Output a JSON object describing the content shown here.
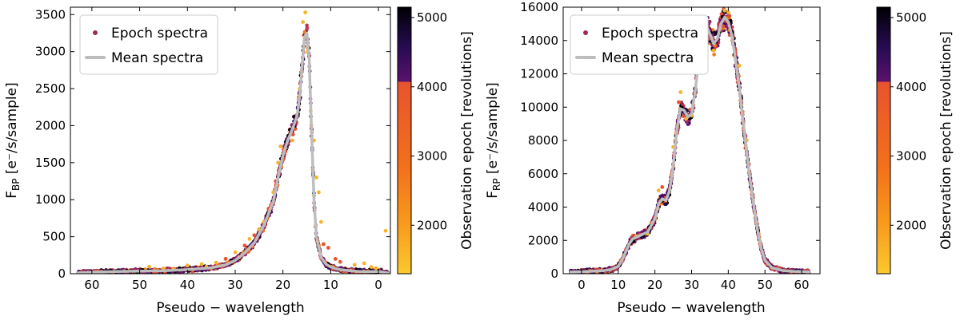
{
  "chart_data": [
    {
      "type": "scatter",
      "name": "bp",
      "xlabel": "Pseudo − wavelength",
      "ylabel_main": "F",
      "ylabel_sub": "BP",
      "ylabel_unit": "[e⁻/s/sample]",
      "x_range": [
        64.5,
        -2.5
      ],
      "y_range": [
        0,
        3600
      ],
      "x_ticks": [
        60,
        50,
        40,
        30,
        20,
        10,
        0
      ],
      "y_ticks": [
        0,
        500,
        1000,
        1500,
        2000,
        2500,
        3000,
        3500
      ],
      "legend": [
        "Epoch spectra",
        "Mean spectra"
      ],
      "legend_position": "top-left",
      "mean_spectrum": {
        "x": [
          63,
          60,
          55,
          50,
          45,
          40,
          35,
          32,
          30,
          28,
          26,
          24,
          22,
          21,
          20,
          19,
          18,
          17,
          16.5,
          16,
          15.5,
          15,
          14.5,
          14,
          13.5,
          13,
          12,
          11,
          10,
          9,
          8,
          6,
          4,
          2,
          0,
          -1,
          -2
        ],
        "y": [
          12,
          20,
          30,
          35,
          40,
          55,
          80,
          120,
          180,
          280,
          420,
          650,
          980,
          1300,
          1600,
          1800,
          1950,
          2150,
          2400,
          2800,
          3200,
          3250,
          2900,
          1900,
          1000,
          500,
          220,
          130,
          90,
          70,
          55,
          40,
          30,
          28,
          30,
          20,
          10
        ]
      },
      "outliers": [
        [
          48,
          95
        ],
        [
          45,
          70
        ],
        [
          43,
          55
        ],
        [
          40,
          110
        ],
        [
          37,
          130
        ],
        [
          36,
          95
        ],
        [
          34,
          150
        ],
        [
          32,
          200
        ],
        [
          30,
          290
        ],
        [
          28,
          380
        ],
        [
          27,
          470
        ],
        [
          26,
          520
        ],
        [
          25,
          600
        ],
        [
          24,
          700
        ],
        [
          23,
          880
        ],
        [
          22,
          1100
        ],
        [
          21.5,
          1250
        ],
        [
          21,
          1500
        ],
        [
          20.5,
          1720
        ],
        [
          19.5,
          1650
        ],
        [
          18,
          1800
        ],
        [
          16.5,
          2500
        ],
        [
          15.8,
          3400
        ],
        [
          15.3,
          3530
        ],
        [
          14.8,
          3000
        ],
        [
          14.2,
          2200
        ],
        [
          13.5,
          1800
        ],
        [
          13,
          1300
        ],
        [
          12.5,
          1100
        ],
        [
          12,
          700
        ],
        [
          11.5,
          400
        ],
        [
          10.5,
          350
        ],
        [
          9,
          200
        ],
        [
          8,
          160
        ],
        [
          5,
          120
        ],
        [
          3,
          140
        ],
        [
          1.5,
          90
        ],
        [
          0.5,
          75
        ],
        [
          -1.5,
          580
        ]
      ]
    },
    {
      "type": "scatter",
      "name": "rp",
      "xlabel": "Pseudo − wavelength",
      "ylabel_main": "F",
      "ylabel_sub": "RP",
      "ylabel_unit": "[e⁻/s/sample]",
      "x_range": [
        -5,
        65
      ],
      "y_range": [
        0,
        16000
      ],
      "x_ticks": [
        0,
        10,
        20,
        30,
        40,
        50,
        60
      ],
      "y_ticks": [
        0,
        2000,
        4000,
        6000,
        8000,
        10000,
        12000,
        14000,
        16000
      ],
      "legend": [
        "Epoch spectra",
        "Mean spectra"
      ],
      "legend_position": "top-left",
      "mean_spectrum": {
        "x": [
          -3,
          0,
          3,
          6,
          8,
          10,
          11,
          12,
          13,
          14,
          16,
          18,
          20,
          21,
          22,
          23,
          24,
          25,
          26,
          27,
          28,
          29,
          30,
          31,
          32,
          33,
          34,
          35,
          36,
          37,
          38,
          39,
          40,
          41,
          42,
          43,
          44,
          45,
          46,
          47,
          48,
          49,
          50,
          52,
          55,
          58,
          60,
          62
        ],
        "y": [
          100,
          120,
          150,
          180,
          250,
          450,
          800,
          1300,
          1800,
          2100,
          2300,
          2500,
          3300,
          4200,
          4500,
          4400,
          5000,
          6500,
          8700,
          9900,
          9800,
          9400,
          9600,
          11000,
          13000,
          14500,
          14900,
          14400,
          13800,
          14100,
          15000,
          15400,
          15100,
          14300,
          12800,
          11200,
          9200,
          7300,
          5600,
          4000,
          2600,
          1500,
          800,
          350,
          180,
          140,
          130,
          110
        ]
      },
      "outliers": [
        [
          27,
          10900
        ],
        [
          26.5,
          10300
        ],
        [
          22,
          5200
        ],
        [
          21,
          5000
        ],
        [
          25,
          7600
        ],
        [
          34,
          15200
        ],
        [
          39,
          15800
        ],
        [
          40,
          15700
        ],
        [
          43,
          12500
        ],
        [
          36,
          13400
        ],
        [
          28.5,
          9300
        ],
        [
          33,
          14200
        ],
        [
          18,
          2400
        ],
        [
          15,
          2250
        ],
        [
          30,
          9500
        ],
        [
          45,
          8000
        ]
      ]
    }
  ],
  "colorbar": {
    "label": "Observation epoch [revolutions]",
    "range": [
      1300,
      5150
    ],
    "ticks": [
      2000,
      3000,
      4000,
      5000
    ],
    "stops": [
      "#fbc930",
      "#f89c1d",
      "#f3701b",
      "#e8532e",
      "#a42c60",
      "#5c126e",
      "#270b52",
      "#000004"
    ]
  },
  "colors": {
    "epoch_marker": "#9b2b5a",
    "mean_line": "#bdbdbd",
    "outlier": "#f6b32b",
    "dense_palette": [
      "#000004",
      "#1b0c41",
      "#420a68",
      "#6a176e",
      "#932667",
      "#bc3754",
      "#dd513a",
      "#f37819"
    ]
  }
}
